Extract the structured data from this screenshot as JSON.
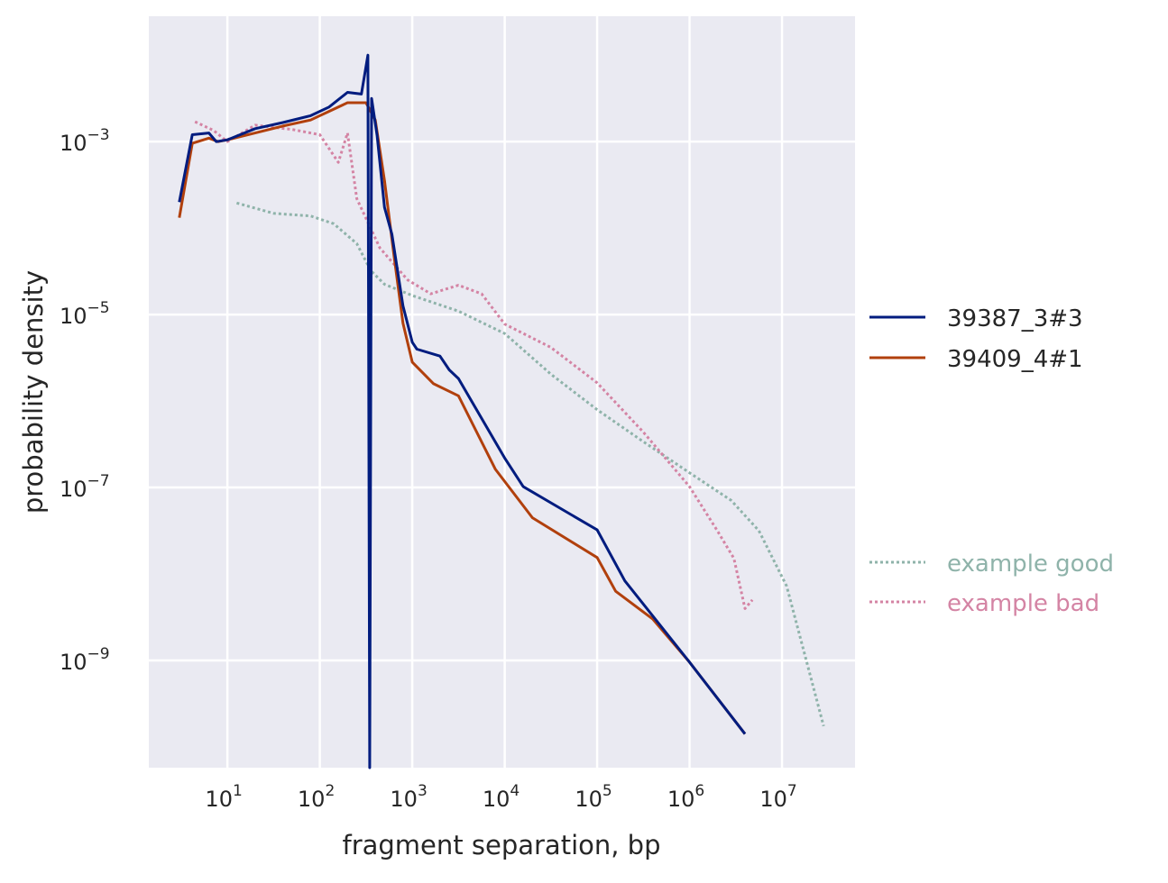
{
  "chart_data": {
    "type": "line",
    "xscale": "log",
    "yscale": "log",
    "xlabel": "fragment separation, bp",
    "ylabel": "probability density",
    "xlim_log10": [
      0.15,
      7.79
    ],
    "ylim_log10": [
      -10.24,
      -1.55
    ],
    "grid": true,
    "legend_placement": "right-outside",
    "x_ticks": [
      {
        "exp": 1,
        "label": "10",
        "sup": "1"
      },
      {
        "exp": 2,
        "label": "10",
        "sup": "2"
      },
      {
        "exp": 3,
        "label": "10",
        "sup": "3"
      },
      {
        "exp": 4,
        "label": "10",
        "sup": "4"
      },
      {
        "exp": 5,
        "label": "10",
        "sup": "5"
      },
      {
        "exp": 6,
        "label": "10",
        "sup": "6"
      },
      {
        "exp": 7,
        "label": "10",
        "sup": "7"
      }
    ],
    "y_ticks": [
      {
        "exp": -3,
        "label": "10",
        "sup": "−3"
      },
      {
        "exp": -5,
        "label": "10",
        "sup": "−5"
      },
      {
        "exp": -7,
        "label": "10",
        "sup": "−7"
      },
      {
        "exp": -9,
        "label": "10",
        "sup": "−9"
      }
    ],
    "series": [
      {
        "name": "39387_3#3",
        "color": "#001c7f",
        "style": "solid",
        "points_log10": [
          [
            0.48,
            -3.7
          ],
          [
            0.62,
            -2.92
          ],
          [
            0.8,
            -2.9
          ],
          [
            0.88,
            -3.0
          ],
          [
            1.0,
            -2.98
          ],
          [
            1.3,
            -2.85
          ],
          [
            1.6,
            -2.78
          ],
          [
            1.9,
            -2.7
          ],
          [
            2.1,
            -2.6
          ],
          [
            2.3,
            -2.43
          ],
          [
            2.45,
            -2.45
          ],
          [
            2.52,
            -2.0
          ],
          [
            2.54,
            -10.24
          ],
          [
            2.56,
            -2.5
          ],
          [
            2.62,
            -2.93
          ],
          [
            2.7,
            -3.76
          ],
          [
            2.78,
            -4.07
          ],
          [
            2.9,
            -4.9
          ],
          [
            3.0,
            -5.32
          ],
          [
            3.05,
            -5.4
          ],
          [
            3.3,
            -5.48
          ],
          [
            3.4,
            -5.64
          ],
          [
            3.5,
            -5.74
          ],
          [
            4.0,
            -6.66
          ],
          [
            4.2,
            -6.99
          ],
          [
            5.0,
            -7.49
          ],
          [
            5.3,
            -8.08
          ],
          [
            6.0,
            -9.02
          ],
          [
            6.6,
            -9.85
          ]
        ]
      },
      {
        "name": "39409_4#1",
        "color": "#b1400d",
        "style": "solid",
        "points_log10": [
          [
            0.48,
            -3.88
          ],
          [
            0.62,
            -3.02
          ],
          [
            0.8,
            -2.96
          ],
          [
            0.9,
            -3.0
          ],
          [
            1.0,
            -2.98
          ],
          [
            1.3,
            -2.9
          ],
          [
            1.6,
            -2.82
          ],
          [
            1.9,
            -2.75
          ],
          [
            2.1,
            -2.65
          ],
          [
            2.3,
            -2.55
          ],
          [
            2.5,
            -2.55
          ],
          [
            2.6,
            -2.75
          ],
          [
            2.7,
            -3.45
          ],
          [
            2.8,
            -4.3
          ],
          [
            2.9,
            -5.1
          ],
          [
            3.0,
            -5.55
          ],
          [
            3.23,
            -5.8
          ],
          [
            3.5,
            -5.94
          ],
          [
            3.9,
            -6.79
          ],
          [
            4.3,
            -7.35
          ],
          [
            5.0,
            -7.81
          ],
          [
            5.2,
            -8.2
          ],
          [
            5.6,
            -8.52
          ],
          [
            6.0,
            -9.02
          ],
          [
            6.6,
            -9.85
          ]
        ]
      },
      {
        "name": "example good",
        "color": "#8fb3aa",
        "style": "dotted",
        "points_log10": [
          [
            1.1,
            -3.71
          ],
          [
            1.5,
            -3.83
          ],
          [
            1.9,
            -3.86
          ],
          [
            2.15,
            -3.95
          ],
          [
            2.4,
            -4.18
          ],
          [
            2.55,
            -4.49
          ],
          [
            2.7,
            -4.65
          ],
          [
            3.0,
            -4.78
          ],
          [
            3.5,
            -4.96
          ],
          [
            4.0,
            -5.22
          ],
          [
            4.5,
            -5.69
          ],
          [
            5.0,
            -6.1
          ],
          [
            5.5,
            -6.47
          ],
          [
            6.0,
            -6.83
          ],
          [
            6.45,
            -7.15
          ],
          [
            6.75,
            -7.5
          ],
          [
            7.05,
            -8.14
          ],
          [
            7.45,
            -9.76
          ]
        ]
      },
      {
        "name": "example bad",
        "color": "#d484a4",
        "style": "dotted",
        "points_log10": [
          [
            0.65,
            -2.77
          ],
          [
            0.85,
            -2.87
          ],
          [
            1.0,
            -3.0
          ],
          [
            1.3,
            -2.81
          ],
          [
            1.7,
            -2.86
          ],
          [
            2.0,
            -2.92
          ],
          [
            2.2,
            -3.24
          ],
          [
            2.3,
            -2.9
          ],
          [
            2.4,
            -3.66
          ],
          [
            2.65,
            -4.23
          ],
          [
            2.95,
            -4.6
          ],
          [
            3.2,
            -4.76
          ],
          [
            3.5,
            -4.66
          ],
          [
            3.75,
            -4.76
          ],
          [
            4.0,
            -5.11
          ],
          [
            4.5,
            -5.38
          ],
          [
            5.0,
            -5.79
          ],
          [
            5.5,
            -6.36
          ],
          [
            6.0,
            -6.99
          ],
          [
            6.3,
            -7.5
          ],
          [
            6.48,
            -7.82
          ],
          [
            6.6,
            -8.4
          ],
          [
            6.68,
            -8.3
          ]
        ]
      }
    ]
  }
}
